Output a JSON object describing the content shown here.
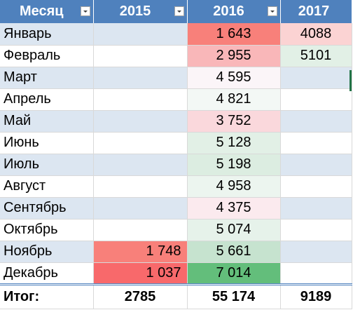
{
  "header": {
    "month": "Месяц",
    "y2015": "2015",
    "y2016": "2016",
    "y2017": "2017"
  },
  "rows": [
    {
      "month": "Январь",
      "v2015": "",
      "v2016": "1 643",
      "v2017": "4088",
      "c2015": "",
      "c2016": "#f8807a",
      "c2017": "#fbd3d3"
    },
    {
      "month": "Февраль",
      "v2015": "",
      "v2016": "2 955",
      "v2017": "5101",
      "c2015": "",
      "c2016": "#f9b7b9",
      "c2017": "#e2f0e6"
    },
    {
      "month": "Март",
      "v2015": "",
      "v2016": "4 595",
      "v2017": "",
      "c2015": "",
      "c2016": "#fbf5f8",
      "c2017": ""
    },
    {
      "month": "Апрель",
      "v2015": "",
      "v2016": "4 821",
      "v2017": "",
      "c2015": "",
      "c2016": "#f3f8f5",
      "c2017": ""
    },
    {
      "month": "Май",
      "v2015": "",
      "v2016": "3 752",
      "v2017": "",
      "c2015": "",
      "c2016": "#fad8dc",
      "c2017": ""
    },
    {
      "month": "Июнь",
      "v2015": "",
      "v2016": "5 128",
      "v2017": "",
      "c2015": "",
      "c2016": "#e2f0e6",
      "c2017": ""
    },
    {
      "month": "Июль",
      "v2015": "",
      "v2016": "5 198",
      "v2017": "",
      "c2015": "",
      "c2016": "#dcede1",
      "c2017": ""
    },
    {
      "month": "Август",
      "v2015": "",
      "v2016": "4 958",
      "v2017": "",
      "c2015": "",
      "c2016": "#ecf5ef",
      "c2017": ""
    },
    {
      "month": "Сентябрь",
      "v2015": "",
      "v2016": "4 375",
      "v2017": "",
      "c2015": "",
      "c2016": "#fbeaee",
      "c2017": ""
    },
    {
      "month": "Октябрь",
      "v2015": "",
      "v2016": "5 074",
      "v2017": "",
      "c2015": "",
      "c2016": "#e6f2ea",
      "c2017": ""
    },
    {
      "month": "Ноябрь",
      "v2015": "1 748",
      "v2016": "5 661",
      "v2017": "",
      "c2015": "#f8807a",
      "c2016": "#c6e3cf",
      "c2017": ""
    },
    {
      "month": "Декабрь",
      "v2015": "1 037",
      "v2016": "7 014",
      "v2017": "",
      "c2015": "#f8696b",
      "c2016": "#63be7b",
      "c2017": ""
    }
  ],
  "total": {
    "label": "Итог:",
    "v2015": "2785",
    "v2016": "55 174",
    "v2017": "9189"
  },
  "colors": {
    "header_bg": "#4f81bd",
    "band": "#dce6f1",
    "selection": "#217346"
  },
  "icons": {
    "filter": "filter-dropdown-icon"
  }
}
